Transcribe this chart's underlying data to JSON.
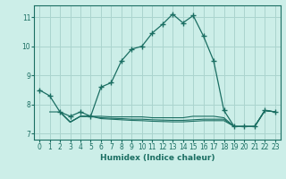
{
  "title": "",
  "xlabel": "Humidex (Indice chaleur)",
  "bg_color": "#cceee8",
  "grid_color": "#aad4ce",
  "line_color": "#1a6e62",
  "xlim": [
    -0.5,
    23.5
  ],
  "ylim": [
    6.8,
    11.4
  ],
  "yticks": [
    7,
    8,
    9,
    10,
    11
  ],
  "xticks": [
    0,
    1,
    2,
    3,
    4,
    5,
    6,
    7,
    8,
    9,
    10,
    11,
    12,
    13,
    14,
    15,
    16,
    17,
    18,
    19,
    20,
    21,
    22,
    23
  ],
  "main_x": [
    0,
    1,
    2,
    3,
    4,
    5,
    6,
    7,
    8,
    9,
    10,
    11,
    12,
    13,
    14,
    15,
    16,
    17,
    18,
    19,
    20,
    21,
    22,
    23
  ],
  "main_y": [
    8.5,
    8.3,
    7.75,
    7.6,
    7.75,
    7.6,
    8.6,
    8.75,
    9.5,
    9.9,
    10.0,
    10.45,
    10.75,
    11.1,
    10.8,
    11.05,
    10.35,
    9.5,
    7.8,
    7.25,
    7.25,
    7.25,
    7.8,
    7.75
  ],
  "extra_lines": [
    {
      "x": [
        1,
        2,
        3,
        4,
        5,
        6,
        7,
        8,
        9,
        10,
        11,
        12,
        13,
        14,
        15,
        16,
        17,
        18,
        19,
        20,
        21,
        22,
        23
      ],
      "y": [
        7.75,
        7.75,
        7.4,
        7.6,
        7.6,
        7.6,
        7.58,
        7.58,
        7.58,
        7.58,
        7.55,
        7.55,
        7.55,
        7.55,
        7.6,
        7.6,
        7.6,
        7.55,
        7.25,
        7.25,
        7.25,
        7.8,
        7.75
      ]
    },
    {
      "x": [
        2,
        3,
        4,
        5,
        6,
        7,
        8,
        9,
        10,
        11,
        12,
        13,
        14,
        15,
        16,
        17,
        18,
        19,
        20,
        21,
        22,
        23
      ],
      "y": [
        7.75,
        7.4,
        7.6,
        7.6,
        7.55,
        7.53,
        7.52,
        7.5,
        7.5,
        7.48,
        7.47,
        7.46,
        7.46,
        7.48,
        7.5,
        7.5,
        7.5,
        7.25,
        7.25,
        7.25,
        7.8,
        7.75
      ]
    },
    {
      "x": [
        2,
        3,
        4,
        5,
        6,
        7,
        8,
        9,
        10,
        11,
        12,
        13,
        14,
        15,
        16,
        17,
        18,
        19,
        20,
        21,
        22,
        23
      ],
      "y": [
        7.75,
        7.4,
        7.6,
        7.6,
        7.52,
        7.5,
        7.48,
        7.46,
        7.45,
        7.43,
        7.42,
        7.41,
        7.41,
        7.43,
        7.45,
        7.45,
        7.45,
        7.25,
        7.25,
        7.25,
        7.8,
        7.75
      ]
    }
  ]
}
